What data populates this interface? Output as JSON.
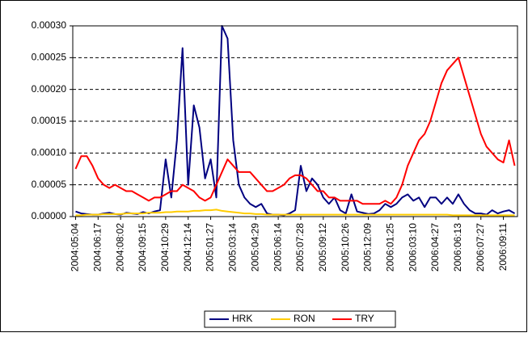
{
  "chart_data": {
    "type": "line",
    "categories": [
      "2004:05:04",
      null,
      null,
      null,
      "2004:06:17",
      null,
      null,
      null,
      "2004:08:02",
      null,
      null,
      null,
      "2004:09:15",
      null,
      null,
      null,
      "2004:10:29",
      null,
      null,
      null,
      "2004:12:14",
      null,
      null,
      null,
      "2005:01:27",
      null,
      null,
      null,
      "2005:03:14",
      null,
      null,
      null,
      "2005:04:29",
      null,
      null,
      null,
      "2005:06:14",
      null,
      null,
      null,
      "2005:07:28",
      null,
      null,
      null,
      "2005:09:12",
      null,
      null,
      null,
      "2005:10:26",
      null,
      null,
      null,
      "2005:12:09",
      null,
      null,
      null,
      "2006:01:25",
      null,
      null,
      null,
      "2006:03:10",
      null,
      null,
      null,
      "2006:04:27",
      null,
      null,
      null,
      "2006:06:13",
      null,
      null,
      null,
      "2006:07:27",
      null,
      null,
      null,
      "2006:09:11",
      null,
      null
    ],
    "series": [
      {
        "name": "HRK",
        "color": "#000080",
        "values": [
          8e-06,
          5e-06,
          4e-06,
          3e-06,
          3e-06,
          5e-06,
          6e-06,
          4e-06,
          3e-06,
          6e-06,
          5e-06,
          4e-06,
          7e-06,
          5e-06,
          8e-06,
          1e-05,
          9e-05,
          3e-05,
          0.00012,
          0.000265,
          5e-05,
          0.000175,
          0.00014,
          6e-05,
          9e-05,
          3e-05,
          0.0003,
          0.00028,
          0.00012,
          5e-05,
          3e-05,
          2e-05,
          1.5e-05,
          2e-05,
          5e-06,
          3e-06,
          3e-06,
          2e-06,
          5e-06,
          1e-05,
          8e-05,
          4e-05,
          6e-05,
          5e-05,
          3e-05,
          2e-05,
          3e-05,
          1e-05,
          5e-06,
          3.5e-05,
          8e-06,
          6e-06,
          4e-06,
          5e-06,
          1e-05,
          2e-05,
          1.5e-05,
          2e-05,
          3e-05,
          3.5e-05,
          2.5e-05,
          3e-05,
          1.5e-05,
          3e-05,
          3e-05,
          2e-05,
          3e-05,
          2e-05,
          3.5e-05,
          2e-05,
          1e-05,
          5e-06,
          5e-06,
          3e-06,
          1e-05,
          5e-06,
          8e-06,
          1e-05,
          5e-06
        ]
      },
      {
        "name": "RON",
        "color": "#ffcc00",
        "values": [
          2e-06,
          2e-06,
          3e-06,
          3e-06,
          3e-06,
          4e-06,
          4e-06,
          4e-06,
          4e-06,
          5e-06,
          5e-06,
          5e-06,
          5e-06,
          6e-06,
          6e-06,
          6e-06,
          7e-06,
          7e-06,
          8e-06,
          8e-06,
          8e-06,
          9e-06,
          9e-06,
          1e-05,
          1e-05,
          1.1e-05,
          9e-06,
          8e-06,
          7e-06,
          6e-06,
          5e-06,
          5e-06,
          4e-06,
          4e-06,
          3e-06,
          3e-06,
          3e-06,
          3e-06,
          3e-06,
          3e-06,
          3e-06,
          3e-06,
          3e-06,
          3e-06,
          3e-06,
          3e-06,
          3e-06,
          3e-06,
          3e-06,
          3e-06,
          3e-06,
          3e-06,
          3e-06,
          3e-06,
          3e-06,
          3e-06,
          3e-06,
          3e-06,
          3e-06,
          3e-06,
          3e-06,
          3e-06,
          3e-06,
          3e-06,
          3e-06,
          3e-06,
          3e-06,
          2e-06,
          2e-06,
          2e-06,
          2e-06,
          2e-06,
          2e-06,
          2e-06,
          2e-06,
          2e-06,
          2e-06,
          2e-06,
          2e-06
        ]
      },
      {
        "name": "TRY",
        "color": "#ff0000",
        "values": [
          7.5e-05,
          9.5e-05,
          9.5e-05,
          8e-05,
          6e-05,
          5e-05,
          4.5e-05,
          5e-05,
          4.5e-05,
          4e-05,
          4e-05,
          3.5e-05,
          3e-05,
          2.5e-05,
          3e-05,
          3e-05,
          3.5e-05,
          4e-05,
          4e-05,
          5e-05,
          4.5e-05,
          4e-05,
          3e-05,
          2.5e-05,
          3e-05,
          5e-05,
          7e-05,
          9e-05,
          8e-05,
          7e-05,
          7e-05,
          7e-05,
          6e-05,
          5e-05,
          4e-05,
          4e-05,
          4.5e-05,
          5e-05,
          6e-05,
          6.5e-05,
          6.5e-05,
          6e-05,
          5e-05,
          4e-05,
          4e-05,
          3e-05,
          3e-05,
          2.5e-05,
          2.5e-05,
          2.5e-05,
          2.5e-05,
          2e-05,
          2e-05,
          2e-05,
          2e-05,
          2.5e-05,
          2e-05,
          3e-05,
          5e-05,
          8e-05,
          0.0001,
          0.00012,
          0.00013,
          0.00015,
          0.00018,
          0.00021,
          0.00023,
          0.00024,
          0.00025,
          0.00022,
          0.00019,
          0.00016,
          0.00013,
          0.00011,
          0.0001,
          9e-05,
          8.5e-05,
          0.00012,
          8e-05
        ]
      }
    ],
    "ylim": [
      0,
      0.0003
    ],
    "yticks": [
      {
        "value": 0,
        "label": "0.00000"
      },
      {
        "value": 5e-05,
        "label": "0.00005"
      },
      {
        "value": 0.0001,
        "label": "0.00010"
      },
      {
        "value": 0.00015,
        "label": "0.00015"
      },
      {
        "value": 0.0002,
        "label": "0.00020"
      },
      {
        "value": 0.00025,
        "label": "0.00025"
      },
      {
        "value": 0.0003,
        "label": "0.00030"
      }
    ],
    "grid": true,
    "legend": "bottom"
  }
}
